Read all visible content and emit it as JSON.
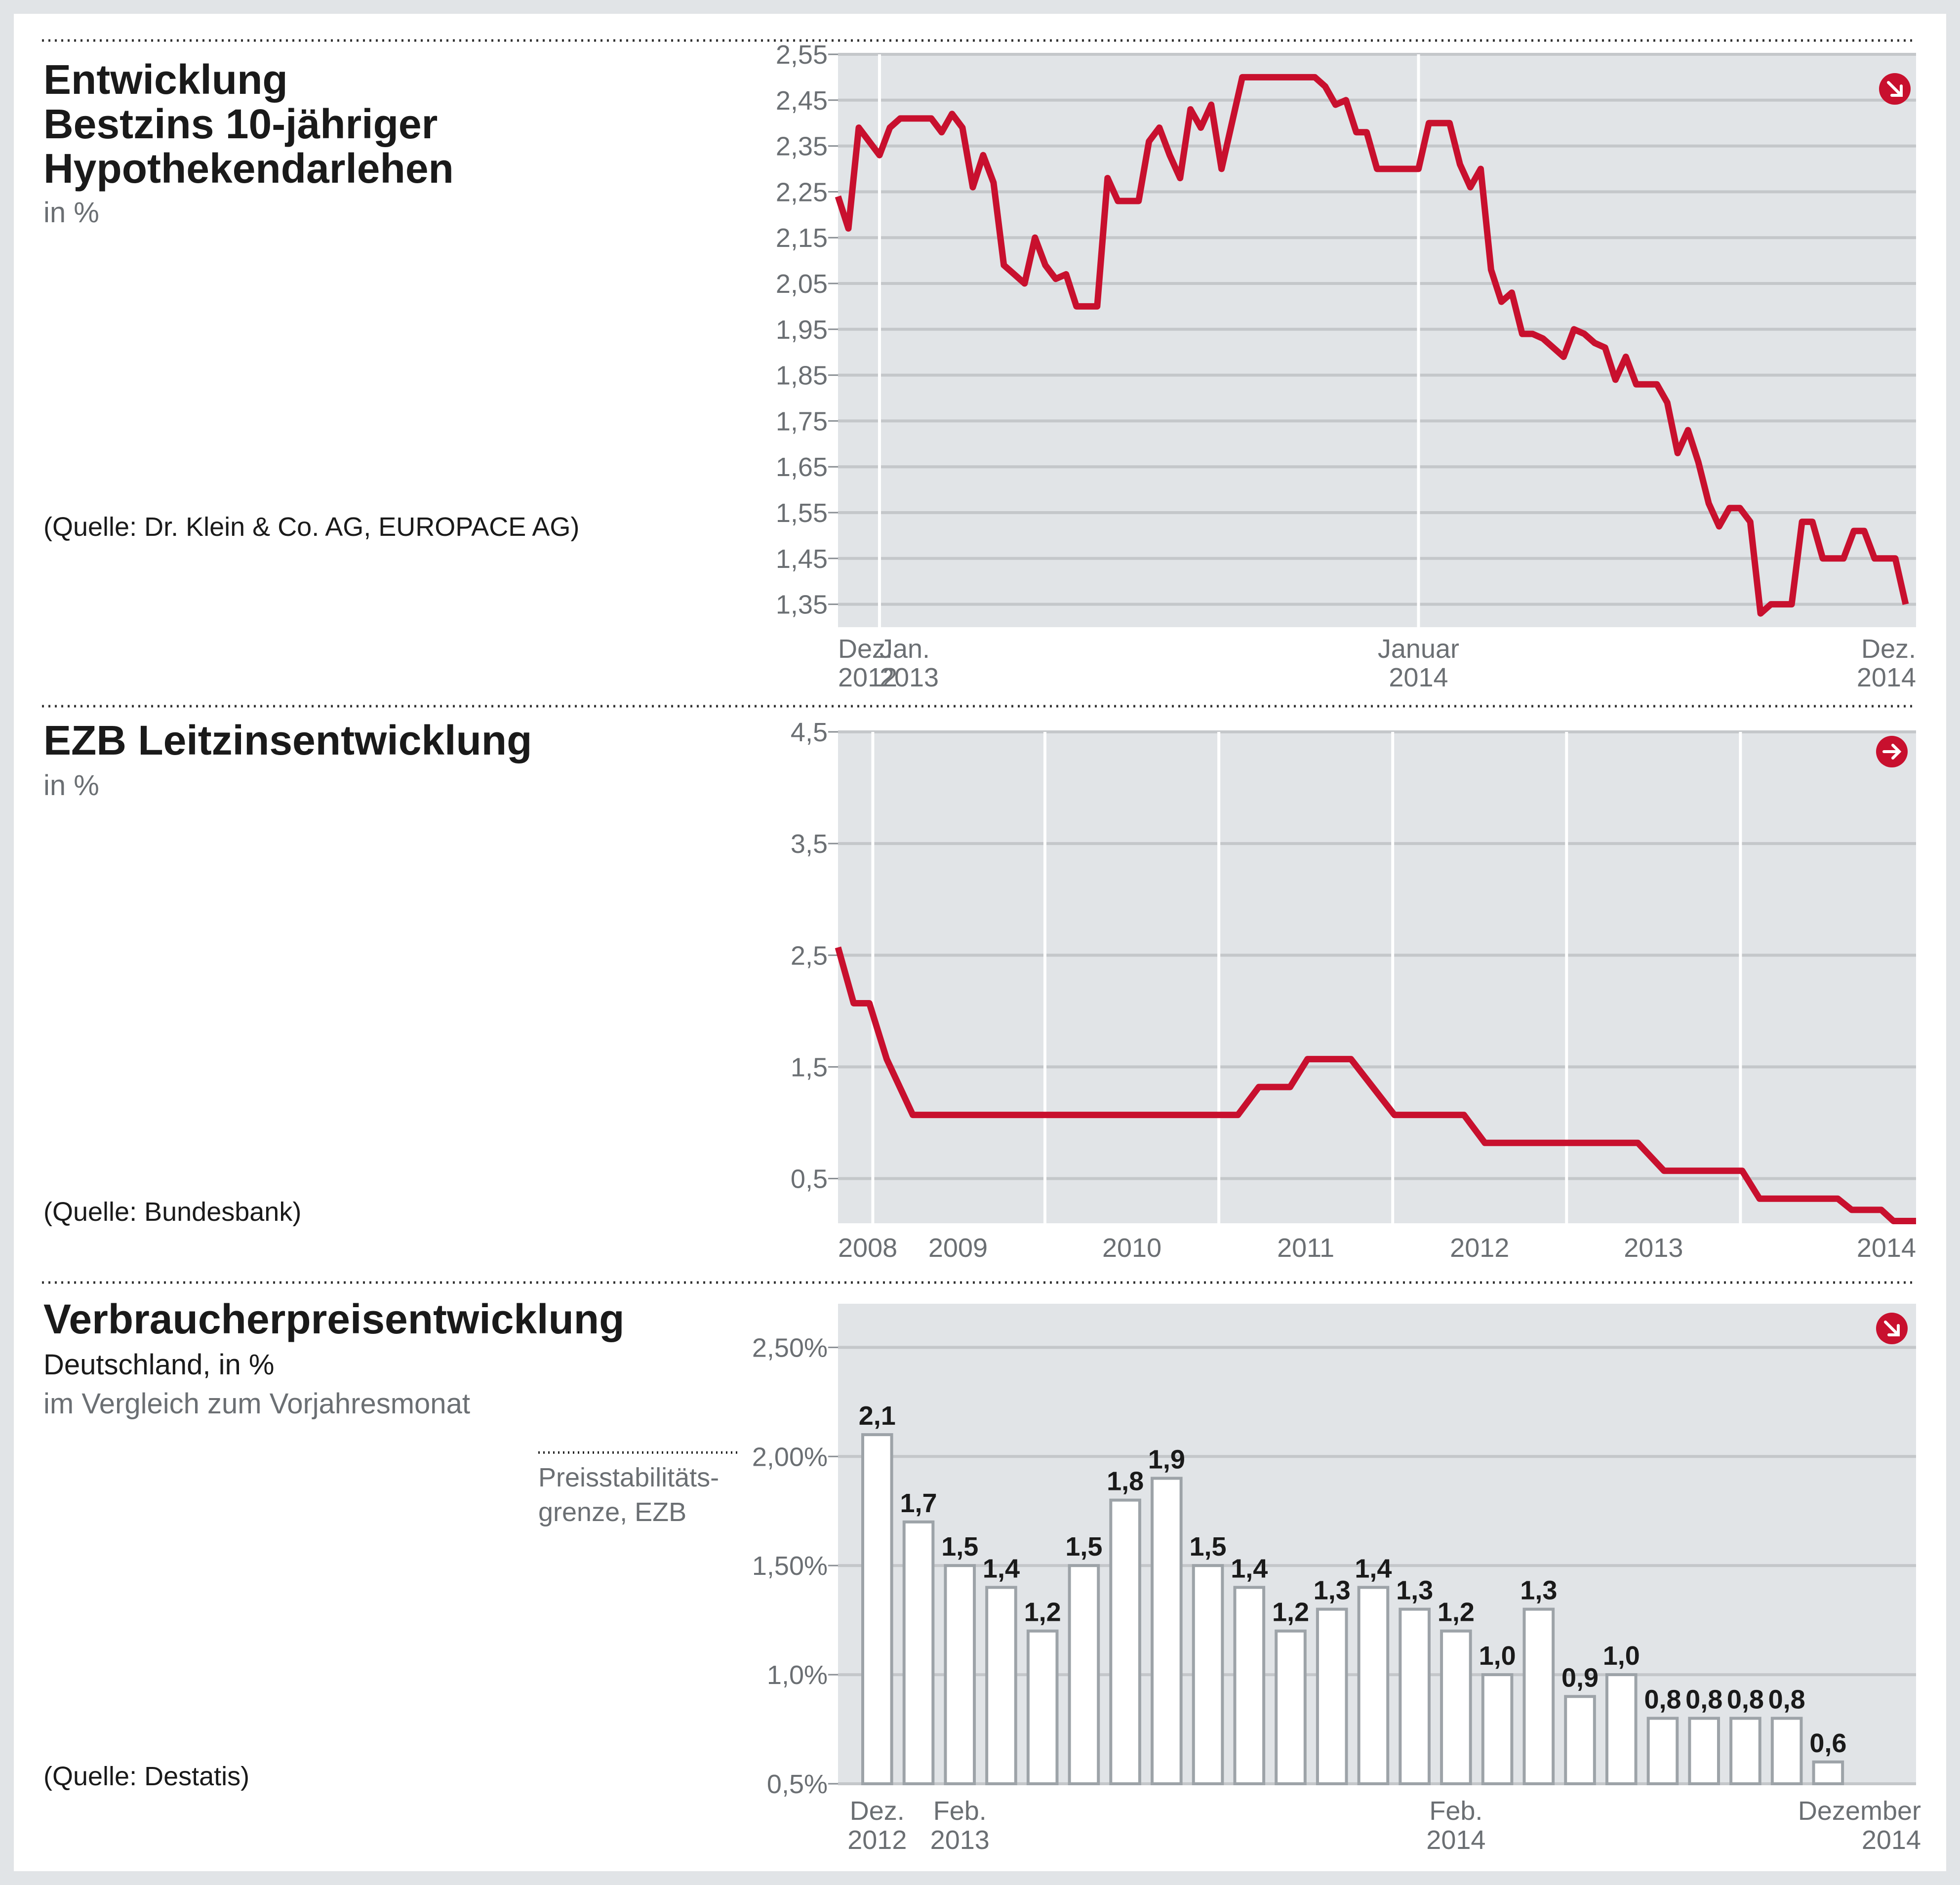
{
  "colors": {
    "line": "#c8102e",
    "grid": "#c4c7ca",
    "plot_bg": "#e1e4e7",
    "panel": "#ffffff",
    "text": "#1a1a1a",
    "muted": "#6b6f73",
    "bar_border": "#9da3a8"
  },
  "panels": [
    {
      "title_lines": [
        "Entwicklung",
        "Bestzins 10-jähriger",
        "Hypothekendarlehen"
      ],
      "subtitle": "in %",
      "source": "(Quelle: Dr. Klein & Co. AG, EUROPACE AG)",
      "trend_icon": "arrow-down-right-icon"
    },
    {
      "title_lines": [
        "EZB Leitzinsentwicklung"
      ],
      "subtitle": "in %",
      "source": "(Quelle: Bundesbank)",
      "trend_icon": "arrow-right-icon"
    },
    {
      "title_lines": [
        "Verbraucherpreisentwicklung"
      ],
      "subtitle": "Deutschland, in %",
      "subtitle2": "im Vergleich zum Vorjahresmonat",
      "source": "(Quelle: Destatis)",
      "trend_icon": "arrow-down-right-icon",
      "annotation_lines": [
        "Preisstabilitäts-",
        "grenze, EZB"
      ]
    }
  ],
  "chart_data": [
    {
      "type": "line",
      "title": "Entwicklung Bestzins 10-jähriger Hypothekendarlehen",
      "unit": "in %",
      "ylim": [
        1.3,
        2.55
      ],
      "yticks": [
        "2,55",
        "2,45",
        "2,35",
        "2,25",
        "2,15",
        "2,05",
        "1,95",
        "1,85",
        "1,75",
        "1,65",
        "1,55",
        "1,45",
        "1,35"
      ],
      "ytick_values": [
        2.55,
        2.45,
        2.35,
        2.25,
        2.15,
        2.05,
        1.95,
        1.85,
        1.75,
        1.65,
        1.55,
        1.45,
        1.35
      ],
      "xlim": [
        0,
        104
      ],
      "xtick_labels": [
        {
          "x": 0,
          "lines": [
            "Dez.",
            "2012"
          ],
          "align": "start"
        },
        {
          "x": 4,
          "lines": [
            "Jan.",
            "2013"
          ],
          "align": "start"
        },
        {
          "x": 56,
          "lines": [
            "Januar",
            "2014"
          ],
          "align": "middle"
        },
        {
          "x": 104,
          "lines": [
            "Dez.",
            "2014"
          ],
          "align": "end"
        }
      ],
      "vlines": [
        4,
        56
      ],
      "grid": true,
      "series": [
        {
          "points": [
            [
              0,
              2.24
            ],
            [
              1,
              2.17
            ],
            [
              2,
              2.39
            ],
            [
              3,
              2.36
            ],
            [
              4,
              2.33
            ],
            [
              5,
              2.39
            ],
            [
              6,
              2.41
            ],
            [
              7,
              2.41
            ],
            [
              8,
              2.41
            ],
            [
              9,
              2.41
            ],
            [
              10,
              2.38
            ],
            [
              11,
              2.42
            ],
            [
              12,
              2.39
            ],
            [
              13,
              2.26
            ],
            [
              14,
              2.33
            ],
            [
              15,
              2.27
            ],
            [
              16,
              2.09
            ],
            [
              17,
              2.07
            ],
            [
              18,
              2.05
            ],
            [
              19,
              2.15
            ],
            [
              20,
              2.09
            ],
            [
              21,
              2.06
            ],
            [
              22,
              2.07
            ],
            [
              23,
              2.0
            ],
            [
              24,
              2.0
            ],
            [
              25,
              2.0
            ],
            [
              26,
              2.28
            ],
            [
              27,
              2.23
            ],
            [
              28,
              2.23
            ],
            [
              29,
              2.23
            ],
            [
              30,
              2.36
            ],
            [
              31,
              2.39
            ],
            [
              32,
              2.33
            ],
            [
              33,
              2.28
            ],
            [
              34,
              2.43
            ],
            [
              35,
              2.39
            ],
            [
              36,
              2.44
            ],
            [
              37,
              2.3
            ],
            [
              38,
              2.4
            ],
            [
              39,
              2.5
            ],
            [
              40,
              2.5
            ],
            [
              41,
              2.5
            ],
            [
              42,
              2.5
            ],
            [
              43,
              2.5
            ],
            [
              44,
              2.5
            ],
            [
              45,
              2.5
            ],
            [
              46,
              2.5
            ],
            [
              47,
              2.48
            ],
            [
              48,
              2.44
            ],
            [
              49,
              2.45
            ],
            [
              50,
              2.38
            ],
            [
              51,
              2.38
            ],
            [
              52,
              2.3
            ],
            [
              53,
              2.3
            ],
            [
              54,
              2.3
            ],
            [
              55,
              2.3
            ],
            [
              56,
              2.3
            ],
            [
              57,
              2.4
            ],
            [
              58,
              2.4
            ],
            [
              59,
              2.4
            ],
            [
              60,
              2.31
            ],
            [
              61,
              2.26
            ],
            [
              62,
              2.3
            ],
            [
              63,
              2.08
            ],
            [
              64,
              2.01
            ],
            [
              65,
              2.03
            ],
            [
              66,
              1.94
            ],
            [
              67,
              1.94
            ],
            [
              68,
              1.93
            ],
            [
              69,
              1.91
            ],
            [
              70,
              1.89
            ],
            [
              71,
              1.95
            ],
            [
              72,
              1.94
            ],
            [
              73,
              1.92
            ],
            [
              74,
              1.91
            ],
            [
              75,
              1.84
            ],
            [
              76,
              1.89
            ],
            [
              77,
              1.83
            ],
            [
              78,
              1.83
            ],
            [
              79,
              1.83
            ],
            [
              80,
              1.79
            ],
            [
              81,
              1.68
            ],
            [
              82,
              1.73
            ],
            [
              83,
              1.66
            ],
            [
              84,
              1.57
            ],
            [
              85,
              1.52
            ],
            [
              86,
              1.56
            ],
            [
              87,
              1.56
            ],
            [
              88,
              1.53
            ],
            [
              89,
              1.33
            ],
            [
              90,
              1.35
            ],
            [
              91,
              1.35
            ],
            [
              92,
              1.35
            ],
            [
              93,
              1.53
            ],
            [
              94,
              1.53
            ],
            [
              95,
              1.45
            ],
            [
              96,
              1.45
            ],
            [
              97,
              1.45
            ],
            [
              98,
              1.51
            ],
            [
              99,
              1.51
            ],
            [
              100,
              1.45
            ],
            [
              101,
              1.45
            ],
            [
              102,
              1.45
            ],
            [
              103,
              1.35
            ]
          ]
        }
      ]
    },
    {
      "type": "line",
      "title": "EZB Leitzinsentwicklung",
      "unit": "in %",
      "ylim": [
        0.1,
        4.5
      ],
      "yticks": [
        "4,5",
        "3,5",
        "2,5",
        "1,5",
        "0,5"
      ],
      "ytick_values": [
        4.5,
        3.5,
        2.5,
        1.5,
        0.5
      ],
      "xlim": [
        0,
        6.2
      ],
      "xtick_labels": [
        {
          "x": 0,
          "lines": [
            "2008"
          ],
          "align": "start"
        },
        {
          "x": 0.69,
          "lines": [
            "2009"
          ],
          "align": "middle"
        },
        {
          "x": 1.69,
          "lines": [
            "2010"
          ],
          "align": "middle"
        },
        {
          "x": 2.69,
          "lines": [
            "2011"
          ],
          "align": "middle"
        },
        {
          "x": 3.69,
          "lines": [
            "2012"
          ],
          "align": "middle"
        },
        {
          "x": 4.69,
          "lines": [
            "2013"
          ],
          "align": "middle"
        },
        {
          "x": 6.2,
          "lines": [
            "2014"
          ],
          "align": "end"
        }
      ],
      "vlines": [
        0.2,
        1.19,
        2.19,
        3.19,
        4.19,
        5.19
      ],
      "grid": true,
      "series": [
        {
          "points": [
            [
              0,
              2.57
            ],
            [
              0.09,
              2.07
            ],
            [
              0.18,
              2.07
            ],
            [
              0.28,
              1.57
            ],
            [
              0.43,
              1.07
            ],
            [
              2.3,
              1.07
            ],
            [
              2.42,
              1.32
            ],
            [
              2.6,
              1.32
            ],
            [
              2.7,
              1.57
            ],
            [
              2.95,
              1.57
            ],
            [
              3.2,
              1.07
            ],
            [
              3.6,
              1.07
            ],
            [
              3.72,
              0.82
            ],
            [
              4.6,
              0.82
            ],
            [
              4.75,
              0.57
            ],
            [
              5.2,
              0.57
            ],
            [
              5.3,
              0.32
            ],
            [
              5.75,
              0.32
            ],
            [
              5.83,
              0.22
            ],
            [
              6.0,
              0.22
            ],
            [
              6.07,
              0.12
            ],
            [
              6.2,
              0.12
            ]
          ]
        }
      ]
    },
    {
      "type": "bar",
      "title": "Verbraucherpreisentwicklung",
      "subtitle": "Deutschland, in %",
      "ylim": [
        0.5,
        2.7
      ],
      "yticks": [
        "2,50%",
        "2,00%",
        "1,50%",
        "1,0%",
        "0,5%"
      ],
      "ytick_values": [
        2.5,
        2.0,
        1.5,
        1.0,
        0.5
      ],
      "reference_line": {
        "value": 2.0,
        "label": "Preisstabilitäts-grenze, EZB"
      },
      "xtick_labels": [
        {
          "index": 0,
          "lines": [
            "Dez.",
            "2012"
          ],
          "align": "middle"
        },
        {
          "index": 2,
          "lines": [
            "Feb.",
            "2013"
          ],
          "align": "middle"
        },
        {
          "index": 14,
          "lines": [
            "Feb.",
            "2014"
          ],
          "align": "middle"
        },
        {
          "index": 24,
          "lines": [
            "Dezember",
            "2014"
          ],
          "align": "end"
        }
      ],
      "values": [
        2.1,
        1.7,
        1.5,
        1.4,
        1.2,
        1.5,
        1.8,
        1.9,
        1.5,
        1.4,
        1.2,
        1.3,
        1.4,
        1.3,
        1.2,
        1.0,
        1.3,
        0.9,
        1.0,
        0.8,
        0.8,
        0.8,
        0.8,
        0.6
      ],
      "labels": [
        "2,1",
        "1,7",
        "1,5",
        "1,4",
        "1,2",
        "1,5",
        "1,8",
        "1,9",
        "1,5",
        "1,4",
        "1,2",
        "1,3",
        "1,4",
        "1,3",
        "1,2",
        "1,0",
        "1,3",
        "0,9",
        "1,0",
        "0,8",
        "0,8",
        "0,8",
        "0,8",
        "0,6"
      ]
    }
  ]
}
